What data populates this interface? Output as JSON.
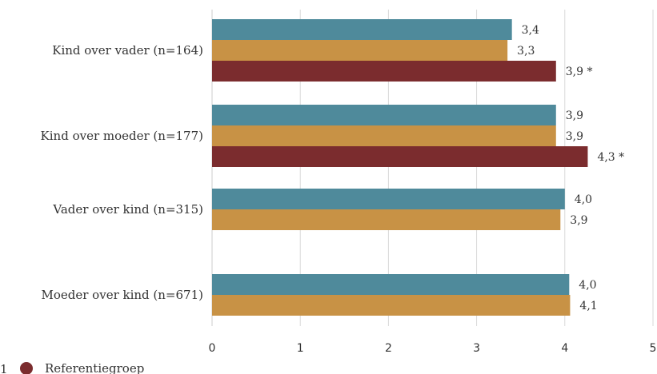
{
  "chart_data": {
    "type": "bar",
    "orientation": "horizontal",
    "categories": [
      "Kind over vader (n=164)",
      "Kind over moeder (n=177)",
      "Vader over kind (n=315)",
      "Moeder over kind (n=671)"
    ],
    "series": [
      {
        "color": "#4f8a9b",
        "values": [
          3.4,
          3.9,
          4.0,
          4.05
        ],
        "labels": [
          "3,4",
          "3,9",
          "4,0",
          "4,0"
        ],
        "markers": [
          "",
          "",
          "",
          ""
        ]
      },
      {
        "color": "#c89245",
        "values": [
          3.35,
          3.9,
          3.95,
          4.06
        ],
        "labels": [
          "3,3",
          "3,9",
          "3,9",
          "4,1"
        ],
        "markers": [
          "",
          "",
          "",
          ""
        ]
      },
      {
        "name": "Referentiegroep",
        "color": "#7b2c2e",
        "values": [
          3.9,
          4.26,
          null,
          null
        ],
        "labels": [
          "3,9",
          "4,3",
          "",
          ""
        ],
        "markers": [
          "*",
          "*",
          "",
          ""
        ]
      }
    ],
    "x_ticks": [
      "0",
      "1",
      "2",
      "3",
      "4",
      "5"
    ],
    "xlim": [
      0,
      5
    ],
    "grid": "vertical",
    "legend_position": "bottom-left"
  },
  "legend": {
    "partial_prefix": "1",
    "items": [
      {
        "label": "Referentiegroep",
        "color": "#7b2c2e"
      }
    ]
  }
}
